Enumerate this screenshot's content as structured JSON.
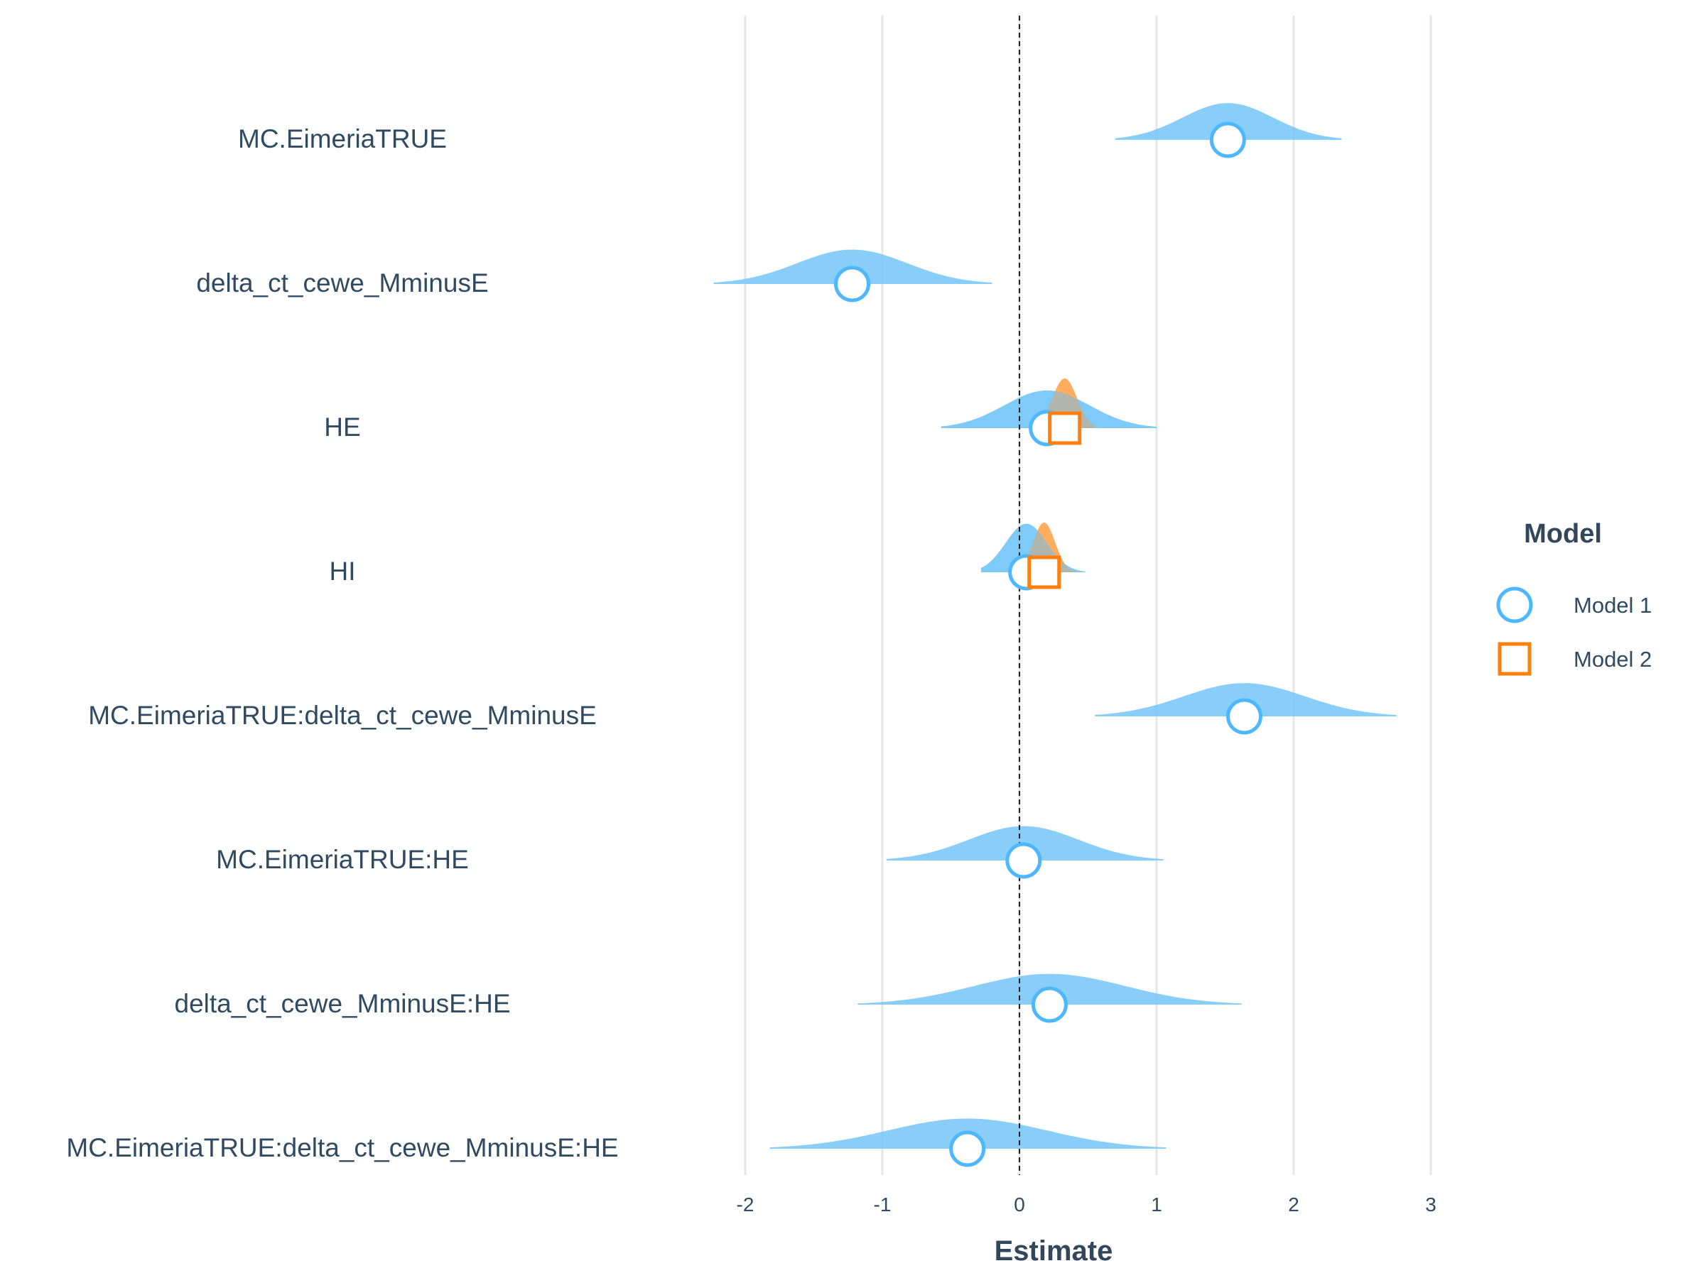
{
  "chart_data": {
    "type": "scatter",
    "subtype": "coefficient-forest-plot-with-posterior-densities",
    "title": "",
    "xlabel": "Estimate",
    "ylabel": "",
    "xlim": [
      -2.5,
      3.5
    ],
    "x_ticks": [
      -2,
      -1,
      0,
      1,
      2,
      3
    ],
    "x_tick_labels": [
      "-2",
      "-1",
      "0",
      "1",
      "2",
      "3"
    ],
    "reference_line": 0,
    "grid": "vertical major gridlines",
    "legend": {
      "title": "Model",
      "position": "right"
    },
    "terms": [
      "MC.EimeriaTRUE",
      "delta_ct_cewe_MminusE",
      "HE",
      "HI",
      "MC.EimeriaTRUE:delta_ct_cewe_MminusE",
      "MC.EimeriaTRUE:HE",
      "delta_ct_cewe_MminusE:HE",
      "MC.EimeriaTRUE:delta_ct_cewe_MminusE:HE"
    ],
    "series": [
      {
        "name": "Model 1",
        "color": "#4db8ff",
        "fill": "#74c5f8",
        "marker": "circle",
        "estimates": [
          1.52,
          -1.22,
          0.2,
          0.05,
          1.64,
          0.03,
          0.22,
          -0.38
        ],
        "density_ranges": [
          [
            0.7,
            2.35
          ],
          [
            -2.23,
            -0.2
          ],
          [
            -0.57,
            1.0
          ],
          [
            -0.28,
            0.48
          ],
          [
            0.55,
            2.75
          ],
          [
            -0.97,
            1.05
          ],
          [
            -1.18,
            1.62
          ],
          [
            -1.82,
            1.07
          ]
        ],
        "density_sd": [
          0.33,
          0.4,
          0.31,
          0.15,
          0.44,
          0.4,
          0.55,
          0.58
        ]
      },
      {
        "name": "Model 2",
        "color": "#ff7f0e",
        "fill": "#ff9f45",
        "marker": "square",
        "term_indices": [
          2,
          3
        ],
        "estimates": [
          0.33,
          0.18
        ],
        "density_ranges": [
          [
            0.08,
            0.55
          ],
          [
            0.02,
            0.47
          ]
        ],
        "density_sd": [
          0.09,
          0.08
        ]
      }
    ]
  }
}
